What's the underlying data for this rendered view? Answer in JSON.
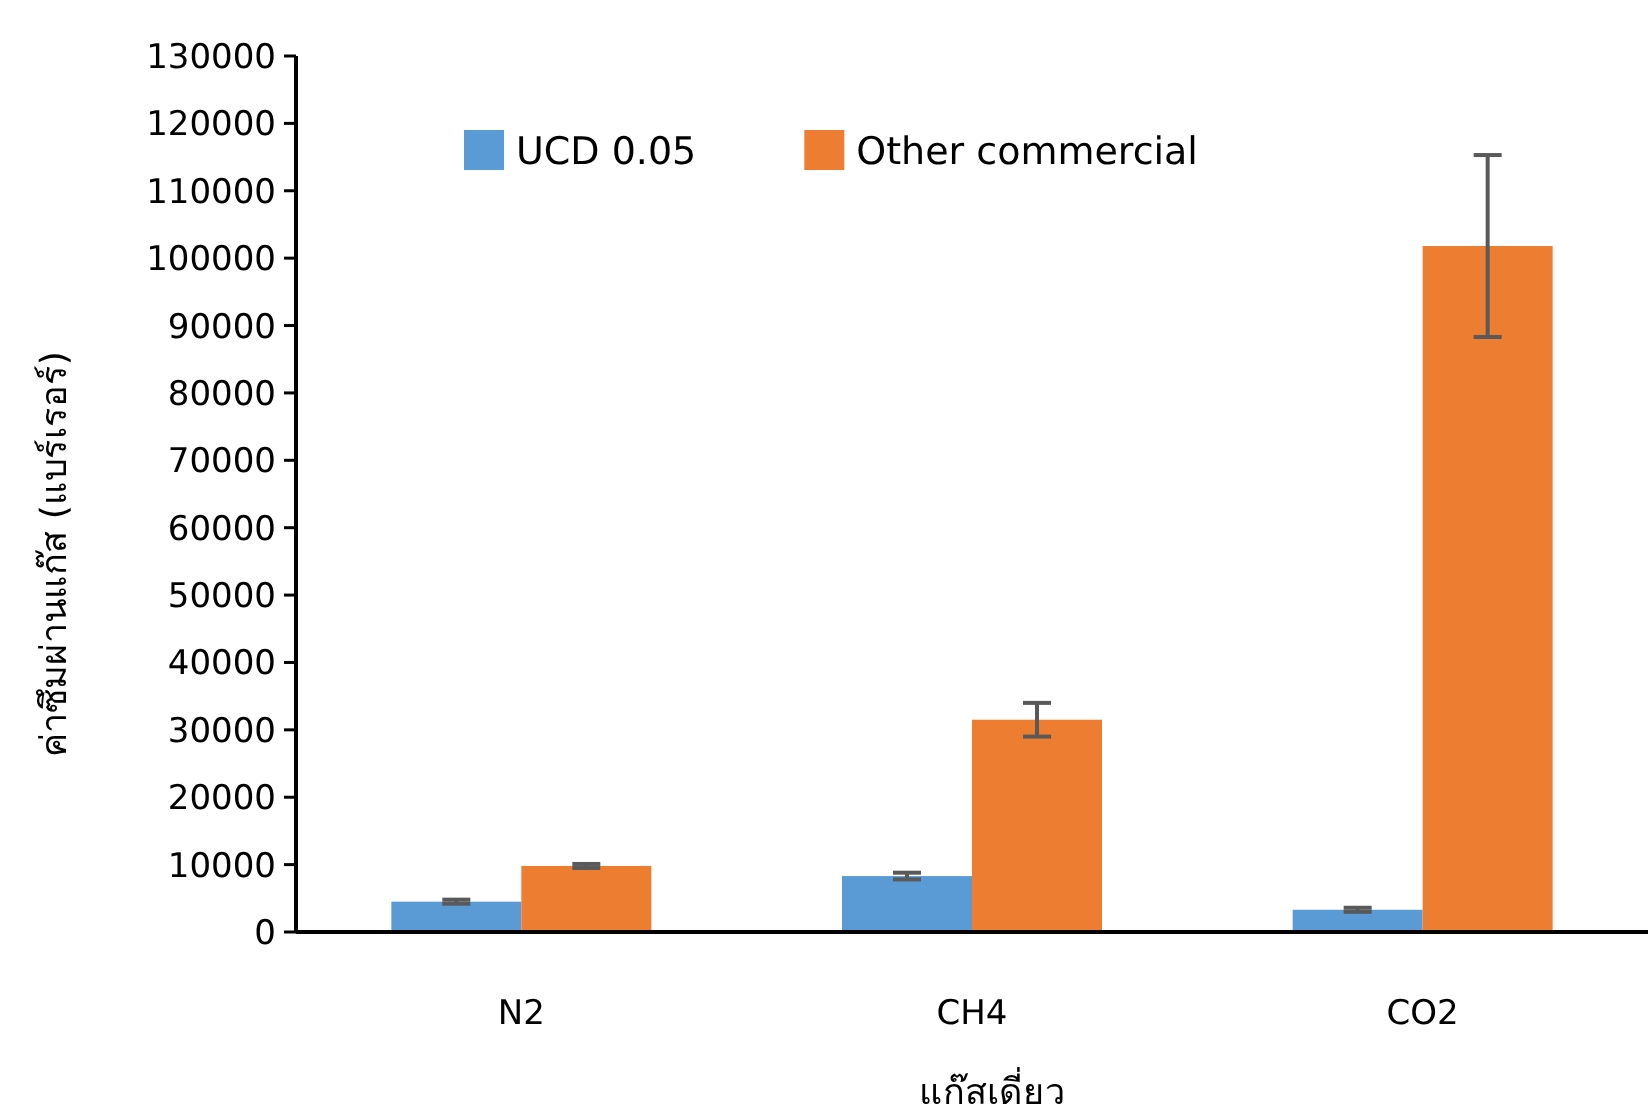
{
  "chart_data": {
    "type": "bar",
    "xlabel": "แก๊สเดี่ยว",
    "ylabel": "ค่าซึมผ่านแก๊ส (แบร์เรอร์)",
    "categories": [
      "N2",
      "CH4",
      "CO2"
    ],
    "series": [
      {
        "name": "UCD 0.05",
        "color": "#5b9bd5",
        "values": [
          4500,
          8300,
          3300
        ],
        "errors": [
          300,
          500,
          300
        ]
      },
      {
        "name": "Other commercial",
        "color": "#ed7d31",
        "values": [
          9800,
          31500,
          101800
        ],
        "errors": [
          300,
          2500,
          13500
        ]
      }
    ],
    "ylim": [
      0,
      130000
    ],
    "yticks": [
      0,
      10000,
      20000,
      30000,
      40000,
      50000,
      60000,
      70000,
      80000,
      90000,
      100000,
      110000,
      120000,
      130000
    ],
    "grid": false,
    "legend": "top left"
  }
}
